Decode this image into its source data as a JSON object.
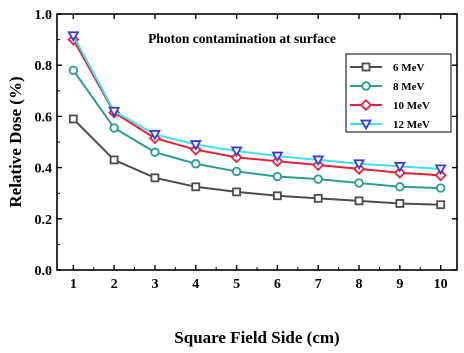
{
  "chart_data": {
    "type": "line",
    "title": "Photon contamination at surface",
    "xlabel": "Square Field Side (cm)",
    "ylabel": "Relative Dose (%)",
    "x": [
      1,
      2,
      3,
      4,
      5,
      6,
      7,
      8,
      9,
      10
    ],
    "xlim": [
      0.6,
      10.4
    ],
    "ylim": [
      0.0,
      1.0
    ],
    "xticks": [
      "1",
      "2",
      "3",
      "4",
      "5",
      "6",
      "7",
      "8",
      "9",
      "10"
    ],
    "yticks": [
      "0.0",
      "0.2",
      "0.4",
      "0.6",
      "0.8",
      "1.0"
    ],
    "grid": false,
    "legend_position": "top-right",
    "series": [
      {
        "name": "6 MeV",
        "color": "#4d4d4d",
        "marker": "square",
        "values": [
          0.59,
          0.43,
          0.36,
          0.325,
          0.305,
          0.29,
          0.28,
          0.27,
          0.26,
          0.255
        ]
      },
      {
        "name": "8 MeV",
        "color": "#2a9d8f",
        "marker": "circle",
        "values": [
          0.78,
          0.555,
          0.46,
          0.415,
          0.385,
          0.365,
          0.355,
          0.34,
          0.325,
          0.32
        ]
      },
      {
        "name": "10 MeV",
        "color": "#e5213a",
        "marker": "diamond",
        "values": [
          0.9,
          0.615,
          0.515,
          0.47,
          0.44,
          0.425,
          0.41,
          0.395,
          0.38,
          0.37
        ]
      },
      {
        "name": "12 MeV",
        "color": "#3ee0ef",
        "marker": "triangle-down",
        "values": [
          0.915,
          0.62,
          0.53,
          0.49,
          0.465,
          0.445,
          0.43,
          0.415,
          0.405,
          0.395
        ]
      }
    ]
  }
}
